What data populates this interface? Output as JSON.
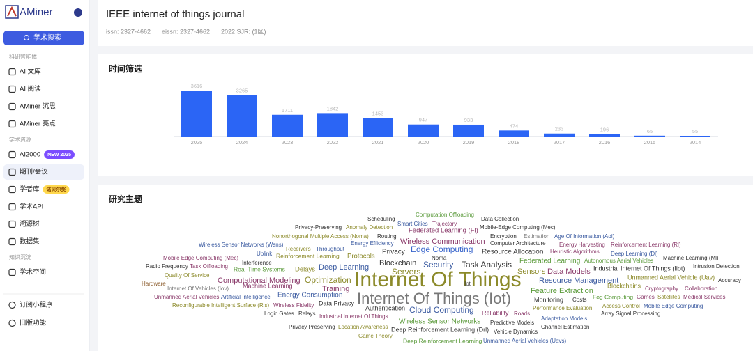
{
  "sidebar": {
    "logo": "AMiner",
    "search": "学术搜索",
    "groups": [
      {
        "label": "科研智能体",
        "items": [
          "AI 文库",
          "AI 阅读",
          "AMiner 沉思",
          "AMiner 亮点"
        ]
      },
      {
        "label": "学术资源",
        "items": [
          "AI2000",
          "期刊/会议",
          "学者库",
          "学术API",
          "溯源树",
          "数据集"
        ]
      },
      {
        "label": "知识沉淀",
        "items": [
          "学术空间"
        ]
      }
    ],
    "new_badge": "NEW 2025",
    "scholar_badge": "诺贝尔奖",
    "footer": [
      "订阅小程序",
      "旧版功能"
    ]
  },
  "journal": {
    "title": "IEEE internet of things journal",
    "issn": "issn: 2327-4662",
    "eissn": "eissn: 2327-4662",
    "sjr": "2022 SJR: (1区)"
  },
  "chart_data": {
    "type": "bar",
    "title": "时间筛选",
    "categories": [
      "2025",
      "2024",
      "2023",
      "2022",
      "2021",
      "2020",
      "2019",
      "2018",
      "2017",
      "2016",
      "2015",
      "2014"
    ],
    "values": [
      3616,
      3265,
      1711,
      1842,
      1453,
      947,
      933,
      474,
      233,
      196,
      65,
      55
    ],
    "color": "#2b65f5"
  },
  "topics": {
    "title": "研究主题",
    "words": [
      "Scheduling",
      "Computation Offloading",
      "Data Collection",
      "Smart Cities",
      "Trajectory",
      "Privacy-Preserving",
      "Anomaly Detection",
      "Federated Learning (Fl)",
      "Mobile-Edge Computing (Mec)",
      "Nonorthogonal Multiple Access (Noma)",
      "Routing",
      "Encryption",
      "Estimation",
      "Age Of Information (Aoi)",
      "Wireless Sensor Networks (Wsns)",
      "Energy Efficiency",
      "Wireless Communication",
      "Computer Architecture",
      "Energy Harvesting",
      "Reinforcement Learning (Rl)",
      "Receivers",
      "Throughput",
      "Edge Computing",
      "Noma",
      "Resource Allocation",
      "Heuristic Algorithms",
      "Deep Learning (Dl)",
      "Mobile Edge Computing (Mec)",
      "Uplink",
      "Reinforcement Learning",
      "Protocols",
      "Privacy",
      "Federated Learning",
      "Autonomous Aerial Vehicles",
      "Machine Learning (Ml)",
      "Interference",
      "Blockchain",
      "Security",
      "Task Analysis",
      "Radio Frequency",
      "Task Offloading",
      "Real-Time Systems",
      "Delays",
      "Deep Learning",
      "Servers",
      "Sensors",
      "Data Models",
      "Industrial Internet Of Things (Iiot)",
      "Intrusion Detection",
      "Quality Of Service",
      "Computational Modeling",
      "Optimization",
      "Internet Of Things",
      "Resource Management",
      "Unmanned Aerial Vehicle (Uav)",
      "Accuracy",
      "Hardware",
      "Machine Learning",
      "Iot",
      "Blockchains",
      "Cryptography",
      "Collaboration",
      "Internet Of Vehicles (Iov)",
      "Training",
      "Feature Extraction",
      "Unmanned Aerial Vehicles",
      "Artificial Intelligence",
      "Energy Consumption",
      "Internet Of Things (Iot)",
      "Monitoring",
      "Costs",
      "Fog Computing",
      "Games",
      "Satellites",
      "Medical Services",
      "Reconfigurable Intelligent Surface (Ris)",
      "Wireless Fidelity",
      "Data Privacy",
      "Access Control",
      "Mobile Edge Computing",
      "Authentication",
      "Cloud Computing",
      "Performance Evaluation",
      "Logic Gates",
      "Relays",
      "Industrial Internet Of Things",
      "Reliability",
      "Roads",
      "Array Signal Processing",
      "Adaptation Models",
      "Wireless Sensor Networks",
      "Predictive Models",
      "Privacy Preserving",
      "Location Awareness",
      "Deep Reinforcement Learning (Drl)",
      "Vehicle Dynamics",
      "Channel Estimation",
      "Game Theory",
      "Deep Reinforcement Learning",
      "Unmanned Aerial Vehicles (Uavs)"
    ]
  }
}
